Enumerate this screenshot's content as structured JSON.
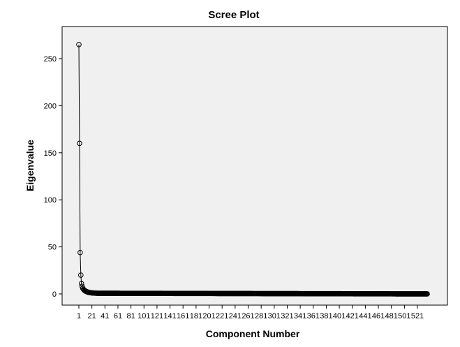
{
  "chart_data": {
    "type": "line",
    "title": "Scree Plot",
    "xlabel": "Component Number",
    "ylabel": "Eigenvalue",
    "xlim": [
      1,
      536
    ],
    "ylim": [
      0,
      265
    ],
    "grid": false,
    "markers": "open-circle",
    "y_ticks": [
      0,
      50,
      100,
      150,
      200,
      250
    ],
    "y_tick_labels": [
      "0",
      "50",
      "100",
      "150",
      "200",
      "250"
    ],
    "x_ticks": [
      1,
      21,
      41,
      61,
      81,
      101,
      121,
      141,
      161,
      181,
      201,
      221,
      241,
      261,
      281,
      301,
      321,
      341,
      361,
      381,
      401,
      421,
      441,
      461,
      481,
      501,
      521
    ],
    "x_tick_labels": [
      "1",
      "21",
      "41",
      "61",
      "81",
      "101",
      "121",
      "141",
      "161",
      "181",
      "201",
      "221",
      "241",
      "261",
      "281",
      "301",
      "321",
      "341",
      "361",
      "381",
      "401",
      "421",
      "441",
      "461",
      "481",
      "501",
      "521"
    ],
    "component_count": 536,
    "leading_eigenvalues": [
      265,
      160,
      44,
      20,
      11,
      8,
      6,
      5,
      4.2,
      3.6,
      3.1,
      2.7,
      2.4,
      2.1,
      1.9,
      1.7,
      1.55,
      1.4,
      1.3,
      1.2,
      1.1,
      1.05,
      1.0,
      0.95,
      0.9,
      0.86,
      0.82,
      0.78,
      0.75,
      0.72
    ],
    "tail_eigenvalue_start": 0.7,
    "tail_eigenvalue_end": 0.02
  }
}
